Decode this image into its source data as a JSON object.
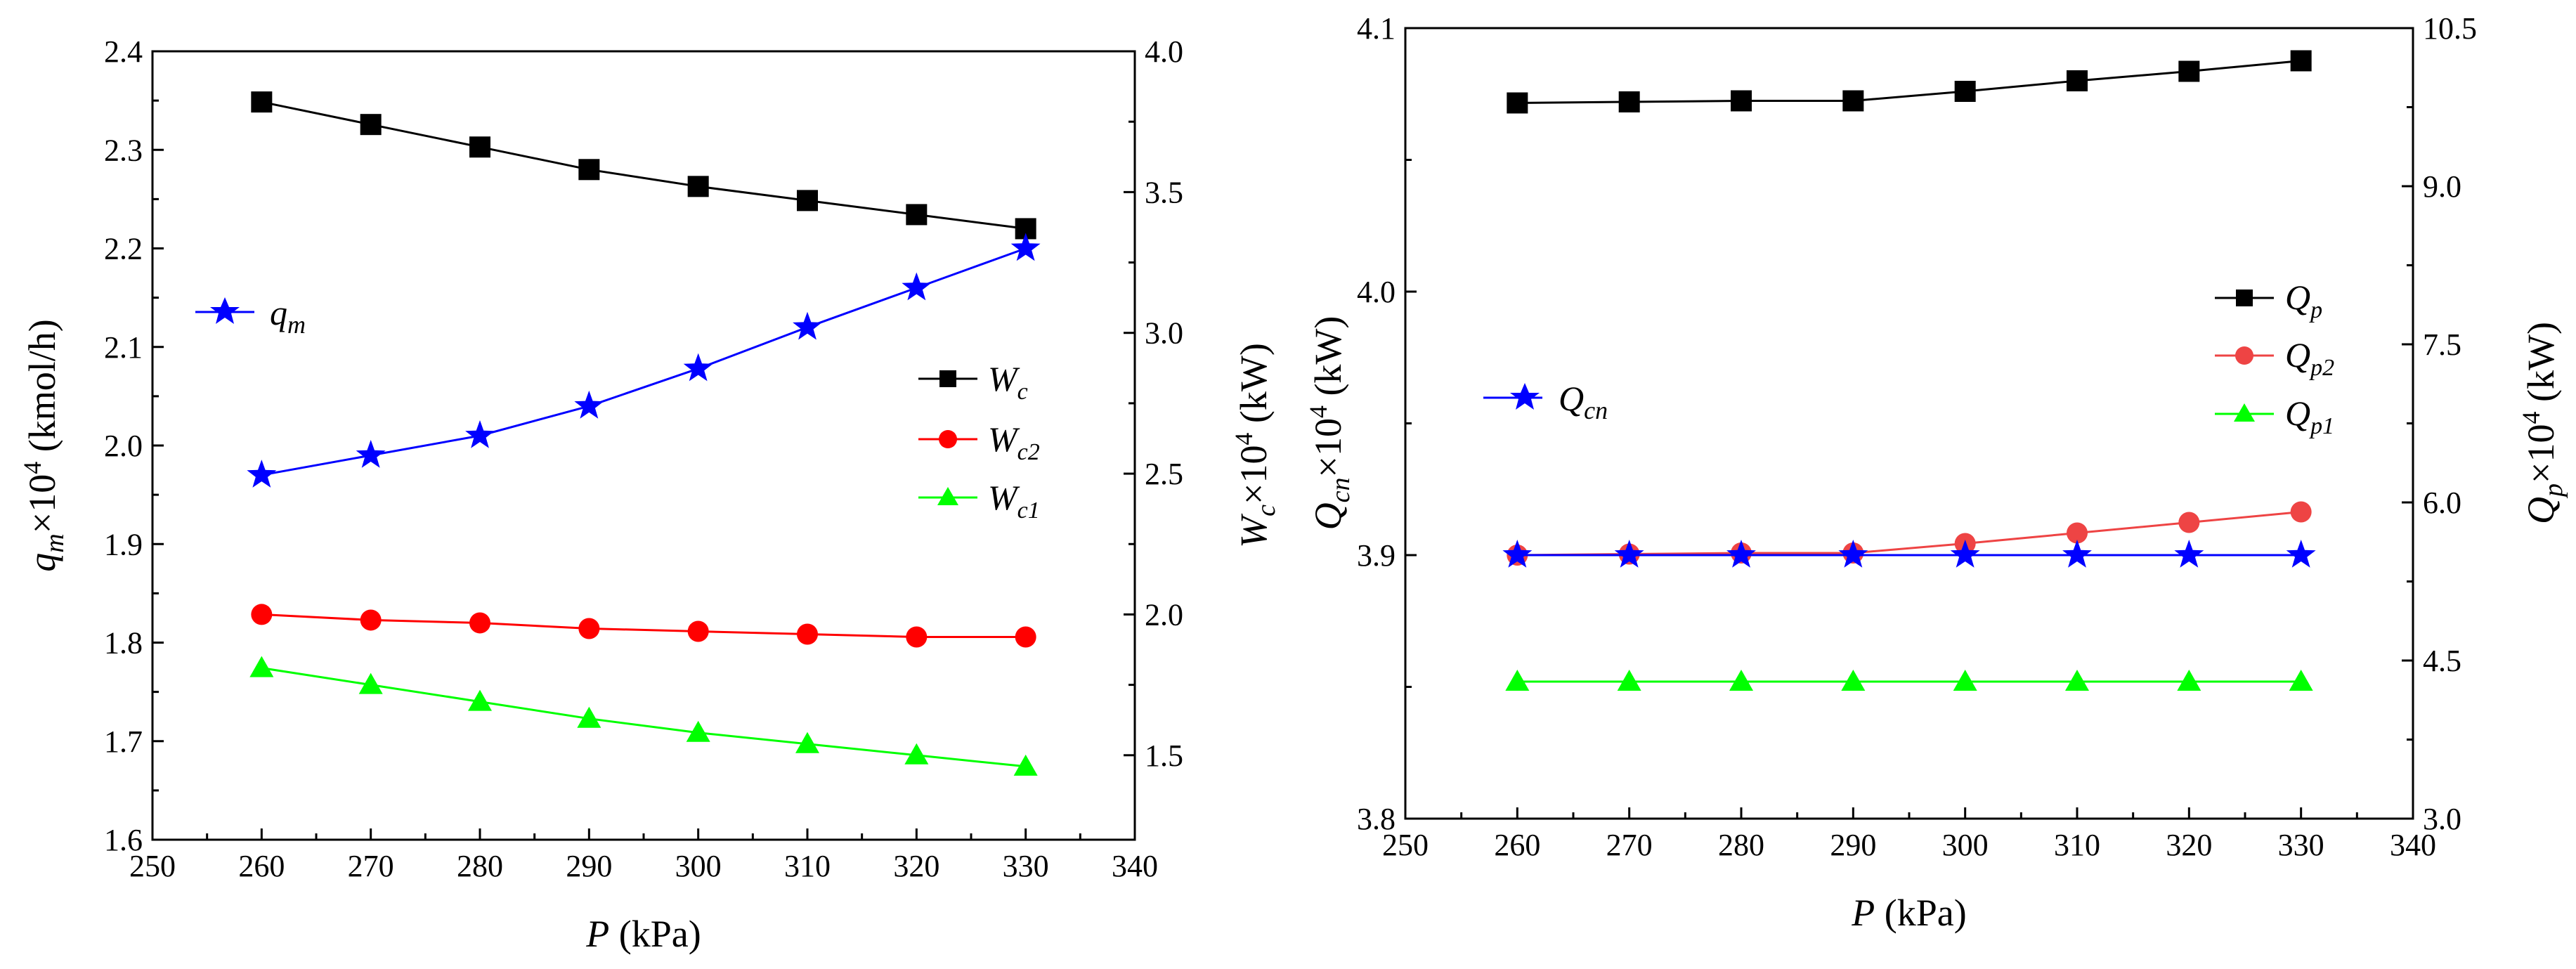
{
  "chart_data": [
    {
      "type": "line",
      "panel": "left",
      "xlabel": "P (kPa)",
      "ylabel": "qm×10^4 (kmol/h)",
      "y2label": "Wc×10^4 (kW)",
      "xlim": [
        250,
        340
      ],
      "ylim": [
        1.6,
        2.4
      ],
      "y2lim": [
        1.2,
        4.0
      ],
      "xticks": [
        "250",
        "260",
        "270",
        "280",
        "290",
        "300",
        "310",
        "320",
        "330",
        "340"
      ],
      "yticks": [
        "1.6",
        "1.7",
        "1.8",
        "1.9",
        "2.0",
        "2.1",
        "2.2",
        "2.3",
        "2.4"
      ],
      "y2ticks": [
        "1.5",
        "2.0",
        "2.5",
        "3.0",
        "3.5",
        "4.0"
      ],
      "x": [
        260,
        270,
        280,
        290,
        300,
        310,
        320,
        330
      ],
      "series": [
        {
          "name": "Wc",
          "sym": "W",
          "sub": "c",
          "axis": "right",
          "color": "#000000",
          "marker": "square",
          "values": [
            3.82,
            3.74,
            3.66,
            3.58,
            3.52,
            3.47,
            3.42,
            3.37
          ]
        },
        {
          "name": "Wc2",
          "sym": "W",
          "sub": "c2",
          "axis": "right",
          "color": "#ff0000",
          "marker": "circle",
          "values": [
            2.0,
            1.98,
            1.97,
            1.95,
            1.94,
            1.93,
            1.92,
            1.92
          ]
        },
        {
          "name": "Wc1",
          "sym": "W",
          "sub": "c1",
          "axis": "right",
          "color": "#00ff00",
          "marker": "triangle",
          "values": [
            1.81,
            1.75,
            1.69,
            1.63,
            1.58,
            1.54,
            1.5,
            1.46
          ]
        },
        {
          "name": "qm",
          "sym": "q",
          "sub": "m",
          "axis": "left",
          "color": "#0000ff",
          "marker": "star",
          "values": [
            1.97,
            1.99,
            2.01,
            2.04,
            2.078,
            2.12,
            2.16,
            2.2
          ]
        }
      ]
    },
    {
      "type": "line",
      "panel": "right",
      "xlabel": "P (kPa)",
      "ylabel": "Qcn×10^4 (kW)",
      "y2label": "Qp×10^4 (kW)",
      "xlim": [
        250,
        340
      ],
      "ylim": [
        3.8,
        4.1
      ],
      "y2lim": [
        3.0,
        10.5
      ],
      "xticks": [
        "250",
        "260",
        "270",
        "280",
        "290",
        "300",
        "310",
        "320",
        "330",
        "340"
      ],
      "yticks": [
        "3.8",
        "3.9",
        "4.0",
        "4.1"
      ],
      "y2ticks": [
        "3.0",
        "4.5",
        "6.0",
        "7.5",
        "9.0",
        "10.5"
      ],
      "x": [
        260,
        270,
        280,
        290,
        300,
        310,
        320,
        330
      ],
      "series": [
        {
          "name": "Qp",
          "sym": "Q",
          "sub": "p",
          "axis": "right",
          "color": "#000000",
          "marker": "square",
          "values": [
            9.79,
            9.8,
            9.81,
            9.81,
            9.9,
            10.0,
            10.09,
            10.19
          ]
        },
        {
          "name": "Qp2",
          "sym": "Q",
          "sub": "p2",
          "axis": "right",
          "color": "#ee4444",
          "marker": "circle",
          "values": [
            5.5,
            5.51,
            5.52,
            5.52,
            5.61,
            5.71,
            5.81,
            5.91
          ]
        },
        {
          "name": "Qp1",
          "sym": "Q",
          "sub": "p1",
          "axis": "right",
          "color": "#00ff00",
          "marker": "triangle",
          "values": [
            4.3,
            4.3,
            4.3,
            4.3,
            4.3,
            4.3,
            4.3,
            4.3
          ]
        },
        {
          "name": "Qcn",
          "sym": "Q",
          "sub": "cn",
          "axis": "left",
          "color": "#0000ff",
          "marker": "star",
          "values": [
            3.9,
            3.9,
            3.9,
            3.9,
            3.9,
            3.9,
            3.9,
            3.9
          ]
        }
      ]
    }
  ]
}
